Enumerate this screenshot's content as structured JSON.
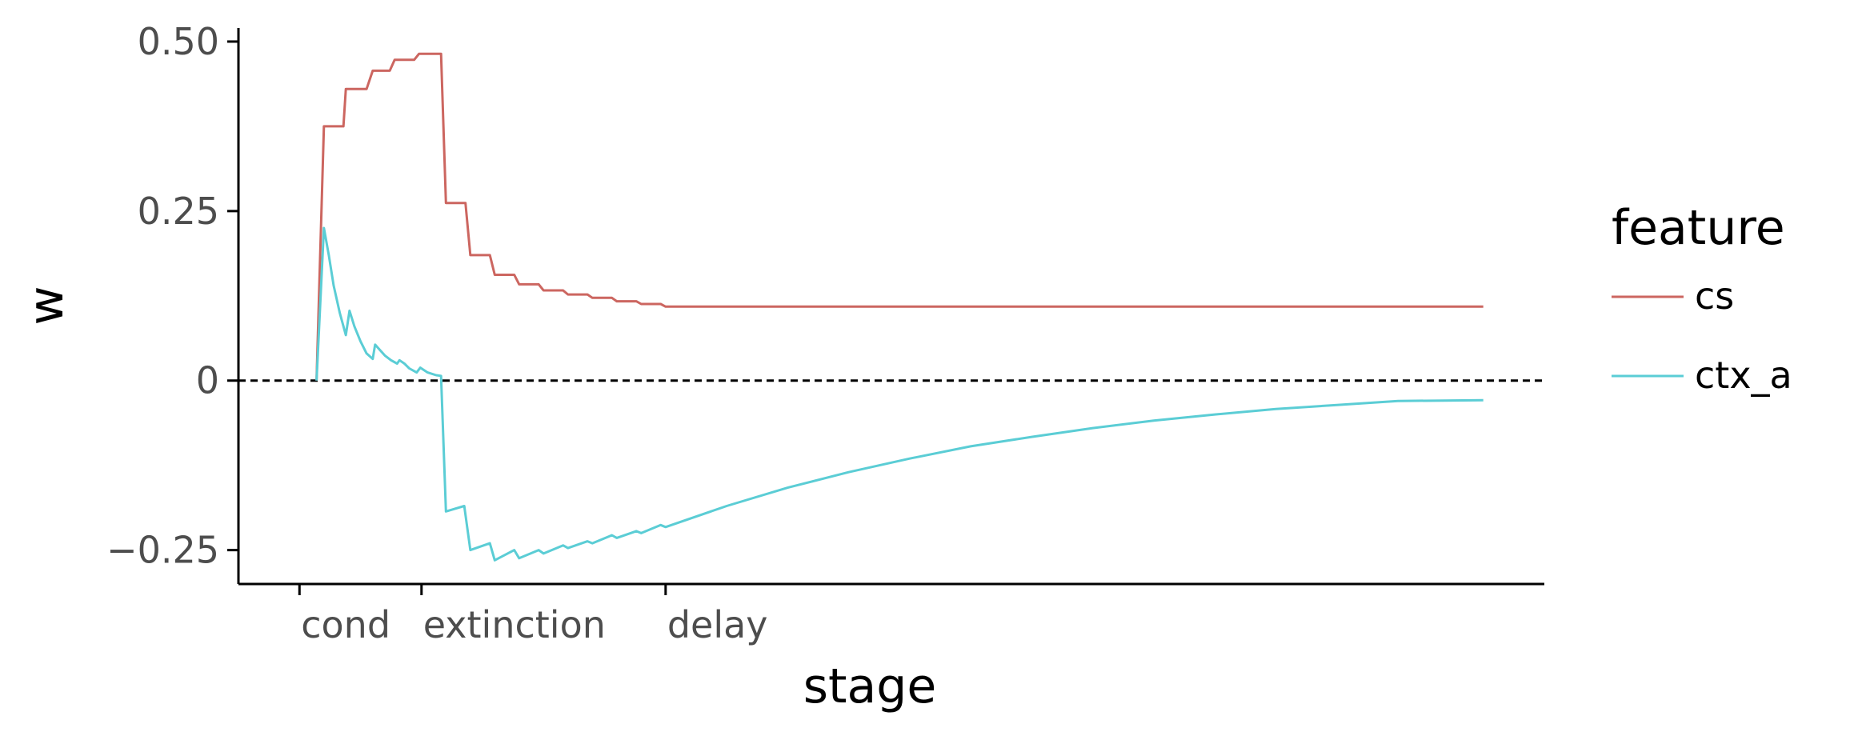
{
  "chart_data": {
    "type": "line",
    "xlabel": "stage",
    "ylabel": "w",
    "x_ticks": [
      "cond",
      "extinction",
      "delay"
    ],
    "y_ticks": [
      {
        "value": 0.5,
        "label": "0.50"
      },
      {
        "value": 0.25,
        "label": "0.25"
      },
      {
        "value": 0,
        "label": "0"
      },
      {
        "value": -0.25,
        "label": "−0.25"
      }
    ],
    "ylim": [
      -0.3,
      0.52
    ],
    "xlim": [
      -0.5,
      10.2
    ],
    "x_tick_positions": [
      0,
      1,
      3
    ],
    "reference_line": {
      "y": 0,
      "style": "dashed",
      "color": "#000000"
    },
    "legend": {
      "title": "feature",
      "position": "right"
    },
    "series": [
      {
        "name": "cs",
        "color": "#CC6660",
        "points": [
          [
            0.14,
            0
          ],
          [
            0.2,
            0.375
          ],
          [
            0.36,
            0.375
          ],
          [
            0.38,
            0.43
          ],
          [
            0.55,
            0.43
          ],
          [
            0.6,
            0.457
          ],
          [
            0.74,
            0.457
          ],
          [
            0.78,
            0.473
          ],
          [
            0.94,
            0.473
          ],
          [
            0.98,
            0.482
          ],
          [
            1.16,
            0.482
          ],
          [
            1.2,
            0.262
          ],
          [
            1.36,
            0.262
          ],
          [
            1.4,
            0.185
          ],
          [
            1.56,
            0.185
          ],
          [
            1.6,
            0.156
          ],
          [
            1.76,
            0.156
          ],
          [
            1.8,
            0.142
          ],
          [
            1.96,
            0.142
          ],
          [
            2.0,
            0.133
          ],
          [
            2.16,
            0.133
          ],
          [
            2.2,
            0.127
          ],
          [
            2.36,
            0.127
          ],
          [
            2.4,
            0.122
          ],
          [
            2.56,
            0.122
          ],
          [
            2.6,
            0.117
          ],
          [
            2.76,
            0.117
          ],
          [
            2.8,
            0.113
          ],
          [
            2.96,
            0.113
          ],
          [
            3.0,
            0.109
          ],
          [
            9.7,
            0.109
          ]
        ]
      },
      {
        "name": "ctx_a",
        "color": "#5BCDD5",
        "points": [
          [
            0.14,
            0
          ],
          [
            0.2,
            0.225
          ],
          [
            0.24,
            0.185
          ],
          [
            0.28,
            0.14
          ],
          [
            0.33,
            0.1
          ],
          [
            0.38,
            0.067
          ],
          [
            0.41,
            0.103
          ],
          [
            0.45,
            0.08
          ],
          [
            0.5,
            0.058
          ],
          [
            0.55,
            0.04
          ],
          [
            0.6,
            0.032
          ],
          [
            0.62,
            0.053
          ],
          [
            0.66,
            0.045
          ],
          [
            0.7,
            0.037
          ],
          [
            0.75,
            0.03
          ],
          [
            0.8,
            0.025
          ],
          [
            0.82,
            0.03
          ],
          [
            0.86,
            0.025
          ],
          [
            0.9,
            0.018
          ],
          [
            0.96,
            0.012
          ],
          [
            0.99,
            0.019
          ],
          [
            1.05,
            0.012
          ],
          [
            1.12,
            0.008
          ],
          [
            1.16,
            0.007
          ],
          [
            1.2,
            -0.193
          ],
          [
            1.35,
            -0.185
          ],
          [
            1.4,
            -0.25
          ],
          [
            1.56,
            -0.24
          ],
          [
            1.6,
            -0.265
          ],
          [
            1.76,
            -0.25
          ],
          [
            1.8,
            -0.262
          ],
          [
            1.96,
            -0.25
          ],
          [
            2.0,
            -0.255
          ],
          [
            2.16,
            -0.243
          ],
          [
            2.2,
            -0.247
          ],
          [
            2.36,
            -0.237
          ],
          [
            2.4,
            -0.24
          ],
          [
            2.56,
            -0.228
          ],
          [
            2.6,
            -0.232
          ],
          [
            2.76,
            -0.222
          ],
          [
            2.8,
            -0.225
          ],
          [
            2.96,
            -0.213
          ],
          [
            3.0,
            -0.216
          ],
          [
            3.5,
            -0.185
          ],
          [
            4,
            -0.158
          ],
          [
            4.5,
            -0.135
          ],
          [
            5,
            -0.115
          ],
          [
            5.5,
            -0.097
          ],
          [
            6,
            -0.083
          ],
          [
            6.5,
            -0.07
          ],
          [
            7,
            -0.059
          ],
          [
            7.5,
            -0.05
          ],
          [
            8,
            -0.042
          ],
          [
            8.5,
            -0.036
          ],
          [
            9,
            -0.03
          ],
          [
            9.7,
            -0.029
          ]
        ]
      }
    ]
  }
}
